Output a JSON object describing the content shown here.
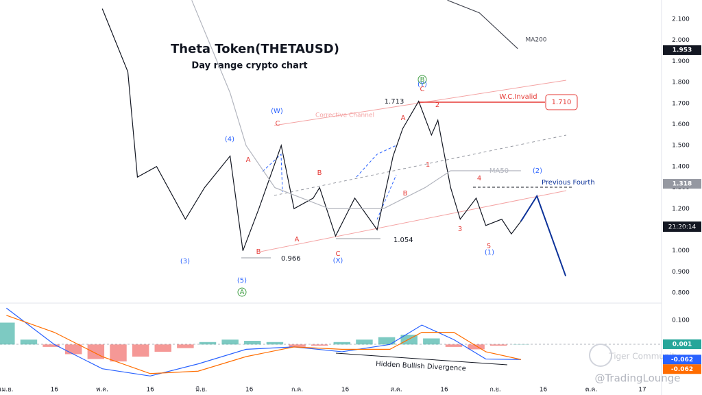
{
  "chart_data": [
    {
      "type": "line",
      "title": "Theta Token(THETAUSD)",
      "subtitle": "Day range crypto chart",
      "xlim": [
        -2,
        205
      ],
      "xticks": [
        {
          "value": 0,
          "label": "เม.ย."
        },
        {
          "value": 15,
          "label": "16"
        },
        {
          "value": 30,
          "label": "พ.ค."
        },
        {
          "value": 45,
          "label": "16"
        },
        {
          "value": 61,
          "label": "มิ.ย."
        },
        {
          "value": 76,
          "label": "16"
        },
        {
          "value": 91,
          "label": "ก.ค."
        },
        {
          "value": 106,
          "label": "16"
        },
        {
          "value": 122,
          "label": "ส.ค."
        },
        {
          "value": 137,
          "label": "16"
        },
        {
          "value": 153,
          "label": "ก.ย."
        },
        {
          "value": 168,
          "label": "16"
        },
        {
          "value": 183,
          "label": "ต.ค."
        },
        {
          "value": 199,
          "label": "17"
        }
      ],
      "ylim": [
        0.758,
        2.191
      ],
      "yticks": [
        {
          "value": 0.8,
          "label": "0.800"
        },
        {
          "value": 0.9,
          "label": "0.900"
        },
        {
          "value": 1.0,
          "label": "1.000"
        },
        {
          "value": 1.1,
          "label": "1.100"
        },
        {
          "value": 1.2,
          "label": "1.200"
        },
        {
          "value": 1.3,
          "label": "1.300"
        },
        {
          "value": 1.4,
          "label": "1.400"
        },
        {
          "value": 1.5,
          "label": "1.500"
        },
        {
          "value": 1.6,
          "label": "1.600"
        },
        {
          "value": 1.7,
          "label": "1.700"
        },
        {
          "value": 1.8,
          "label": "1.800"
        },
        {
          "value": 1.9,
          "label": "1.900"
        },
        {
          "value": 2.0,
          "label": "2.000"
        },
        {
          "value": 2.1,
          "label": "2.100"
        }
      ],
      "series": [
        {
          "color": "#131722",
          "x": [
            30,
            38,
            41,
            47,
            56,
            62,
            70,
            74,
            79,
            86,
            90,
            96,
            98,
            103,
            109,
            116,
            121,
            124,
            129,
            133,
            135,
            139,
            142,
            147,
            150,
            155,
            158,
            161
          ],
          "values": [
            2.15,
            1.85,
            1.35,
            1.4,
            1.15,
            1.3,
            1.45,
            1.0,
            1.2,
            1.5,
            1.2,
            1.25,
            1.3,
            1.07,
            1.25,
            1.1,
            1.45,
            1.58,
            1.71,
            1.55,
            1.62,
            1.3,
            1.15,
            1.25,
            1.12,
            1.15,
            1.08,
            1.14
          ]
        },
        {
          "color": "#b2b5be",
          "x": [
            58,
            70,
            75,
            84,
            101,
            118,
            131,
            139,
            161
          ],
          "values": [
            2.19,
            1.75,
            1.5,
            1.3,
            1.2,
            1.2,
            1.3,
            1.38,
            1.38
          ]
        },
        {
          "color": "#434651",
          "x": [
            138,
            148,
            160
          ],
          "values": [
            2.19,
            2.13,
            1.96
          ]
        },
        {
          "color": "#0c3299",
          "x": [
            161,
            166,
            175
          ],
          "values": [
            1.14,
            1.26,
            0.88
          ]
        }
      ],
      "price_tags": [
        {
          "value": 1.953,
          "label": "1.953",
          "color": "#131722"
        },
        {
          "value": 1.318,
          "label": "1.318",
          "color": "#9598a1"
        }
      ],
      "countdown": "21:20:14",
      "annotations": [
        {
          "text": "(W)",
          "color": "#2962ff"
        },
        {
          "text": "C",
          "color": "#e53935"
        },
        {
          "text": "(4)",
          "color": "#2962ff"
        },
        {
          "text": "A",
          "color": "#e53935"
        },
        {
          "text": "B",
          "color": "#e53935"
        },
        {
          "text": "A",
          "color": "#e53935"
        },
        {
          "text": "B",
          "color": "#e53935"
        },
        {
          "text": "C",
          "color": "#e53935"
        },
        {
          "text": "(X)",
          "color": "#2962ff"
        },
        {
          "text": "0.966",
          "color": "#131722"
        },
        {
          "text": "1.054",
          "color": "#131722"
        },
        {
          "text": "(3)",
          "color": "#2962ff"
        },
        {
          "text": "(5)",
          "color": "#2962ff"
        },
        {
          "text": "A",
          "color": "#43a047"
        },
        {
          "text": "B",
          "color": "#43a047"
        },
        {
          "text": "(Y)",
          "color": "#2962ff"
        },
        {
          "text": "C",
          "color": "#e53935"
        },
        {
          "text": "1.713",
          "color": "#131722"
        },
        {
          "text": "2",
          "color": "#e53935"
        },
        {
          "text": "A",
          "color": "#e53935"
        },
        {
          "text": "1",
          "color": "#e53935"
        },
        {
          "text": "B",
          "color": "#e53935"
        },
        {
          "text": "4",
          "color": "#e53935"
        },
        {
          "text": "3",
          "color": "#e53935"
        },
        {
          "text": "5",
          "color": "#e53935"
        },
        {
          "text": "(1)",
          "color": "#2962ff"
        },
        {
          "text": "(2)",
          "color": "#2962ff"
        },
        {
          "text": "Previous Fourth",
          "color": "#0c3299"
        },
        {
          "text": "MA50",
          "color": "#b2b5be"
        },
        {
          "text": "MA200",
          "color": "#434651"
        },
        {
          "text": "W.C.Invalid",
          "color": "#e53935"
        },
        {
          "text": "Corrective Channel",
          "color": "#f4a3a3"
        },
        {
          "text": "1.710",
          "color": "#e53935"
        }
      ]
    },
    {
      "type": "histogram-macd",
      "ylim": [
        -0.163,
        0.162
      ],
      "yticks": [
        {
          "value": 0.1,
          "label": "0.100"
        }
      ],
      "pos_color": "#26a69a",
      "neg_color": "#ef5350",
      "x": [
        0,
        7,
        14,
        21,
        28,
        35,
        42,
        49,
        56,
        63,
        70,
        77,
        84,
        91,
        98,
        105,
        112,
        119,
        126,
        133,
        140,
        147,
        154,
        161
      ],
      "values": [
        0.09,
        0.02,
        -0.01,
        -0.04,
        -0.06,
        -0.07,
        -0.05,
        -0.03,
        -0.015,
        0.01,
        0.02,
        0.015,
        0.01,
        -0.01,
        -0.005,
        0.01,
        0.02,
        0.03,
        0.04,
        0.025,
        -0.01,
        -0.02,
        -0.005,
        0.001
      ],
      "series": [
        {
          "color": "#2962ff",
          "x": [
            0,
            15,
            30,
            45,
            60,
            75,
            90,
            105,
            120,
            130,
            140,
            150,
            161
          ],
          "values": [
            0.15,
            0.0,
            -0.1,
            -0.13,
            -0.08,
            -0.02,
            -0.01,
            -0.03,
            0.0,
            0.08,
            0.02,
            -0.06,
            -0.062
          ]
        },
        {
          "color": "#ff6d00",
          "x": [
            0,
            15,
            30,
            45,
            60,
            75,
            90,
            105,
            120,
            130,
            140,
            150,
            161
          ],
          "values": [
            0.12,
            0.05,
            -0.05,
            -0.12,
            -0.11,
            -0.05,
            -0.01,
            -0.02,
            -0.02,
            0.05,
            0.05,
            -0.03,
            -0.062
          ]
        }
      ],
      "price_tags": [
        {
          "value": 0.001,
          "label": "0.001",
          "color": "#26a69a"
        },
        {
          "value": -0.062,
          "label": "-0.062",
          "color": "#2962ff"
        },
        {
          "value": -0.062,
          "label": "-0.062",
          "color": "#ff6d00"
        }
      ],
      "annotation": "Hidden Bullish Divergence",
      "watermarks": [
        "Tiger Community",
        "@TradingLounge"
      ]
    }
  ]
}
